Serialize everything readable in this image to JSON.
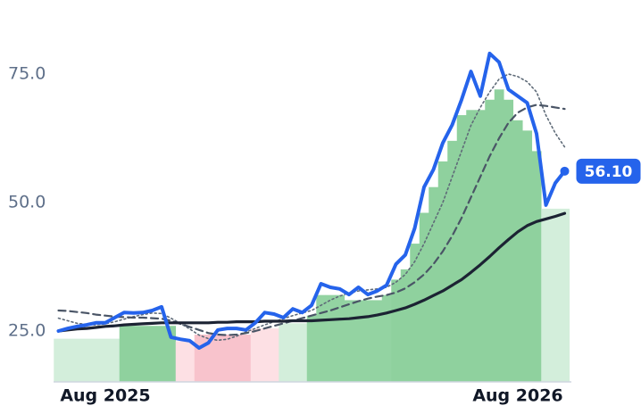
{
  "chart_data": {
    "type": "line",
    "categories": [
      null,
      null,
      null,
      null,
      null,
      "Aug 2025",
      null,
      null,
      null,
      null,
      null,
      null,
      null,
      null,
      null,
      null,
      null,
      null,
      null,
      null,
      null,
      null,
      null,
      null,
      null,
      null,
      null,
      null,
      null,
      null,
      null,
      null,
      null,
      null,
      null,
      null,
      null,
      null,
      null,
      null,
      null,
      null,
      null,
      null,
      null,
      null,
      null,
      null,
      null,
      "Aug 2026",
      null,
      null,
      null,
      null,
      null
    ],
    "series": [
      {
        "color": "#5f6b78",
        "dash": "2 3",
        "width": 1.6,
        "values": [
          27.5,
          27,
          26.5,
          26.3,
          26.2,
          26.4,
          26.8,
          27.3,
          27.8,
          28.2,
          28.5,
          28.4,
          27.5,
          26.5,
          25.4,
          24.2,
          23.5,
          23.2,
          23.4,
          24.0,
          24.8,
          25.5,
          26.2,
          26.8,
          27.4,
          28.0,
          28.5,
          29.0,
          30.0,
          31.0,
          31.8,
          32.4,
          32.8,
          33.0,
          33.2,
          33.5,
          34.5,
          36.0,
          38.5,
          42,
          46,
          50,
          55,
          60,
          65,
          68.5,
          71.5,
          74,
          75,
          74.5,
          73.5,
          71.5,
          67,
          63.5,
          60.8
        ]
      },
      {
        "color": "#4a5566",
        "dash": "8 5",
        "width": 2.2,
        "values": [
          29,
          28.9,
          28.7,
          28.5,
          28.2,
          28,
          27.8,
          27.7,
          27.6,
          27.6,
          27.5,
          27.4,
          27.0,
          26.4,
          25.8,
          25.2,
          24.6,
          24.3,
          24.2,
          24.3,
          24.6,
          25.0,
          25.5,
          26.0,
          26.5,
          27.0,
          27.5,
          28.0,
          28.5,
          29.0,
          29.6,
          30.2,
          30.8,
          31.3,
          31.7,
          32.0,
          32.5,
          33.3,
          34.5,
          36.0,
          38.0,
          40.5,
          43.5,
          47,
          51,
          55,
          59,
          62.5,
          65.5,
          67.5,
          68.5,
          69,
          68.8,
          68.5,
          68.2
        ]
      },
      {
        "color": "#1c2333",
        "dash": "",
        "width": 3.2,
        "values": [
          25.0,
          25.2,
          25.4,
          25.5,
          25.7,
          25.9,
          26.0,
          26.2,
          26.3,
          26.4,
          26.5,
          26.6,
          26.6,
          26.6,
          26.6,
          26.6,
          26.6,
          26.7,
          26.7,
          26.8,
          26.8,
          26.8,
          26.9,
          26.9,
          26.9,
          27.0,
          27.0,
          27.0,
          27.1,
          27.2,
          27.3,
          27.4,
          27.6,
          27.8,
          28.1,
          28.5,
          29.0,
          29.5,
          30.2,
          31.0,
          31.9,
          32.8,
          33.9,
          35.0,
          36.4,
          37.9,
          39.5,
          41.2,
          42.8,
          44.3,
          45.5,
          46.3,
          46.8,
          47.3,
          47.9
        ]
      },
      {
        "color": "#2563eb",
        "dash": "",
        "width": 4,
        "values": [
          25.0,
          25.5,
          25.9,
          26.2,
          26.6,
          26.6,
          27.6,
          28.6,
          28.5,
          28.6,
          29.0,
          29.7,
          23.8,
          23.4,
          23.1,
          21.7,
          22.7,
          25.2,
          25.5,
          25.5,
          25.2,
          26.6,
          28.6,
          28.3,
          27.6,
          29.3,
          28.6,
          30.0,
          34.2,
          33.5,
          33.2,
          32.1,
          33.5,
          32.1,
          32.8,
          33.9,
          38.0,
          39.8,
          45.0,
          53.0,
          56.4,
          61.6,
          65.1,
          70.0,
          75.5,
          70.7,
          79.0,
          77.3,
          72.0,
          70.7,
          69.4,
          63.4,
          49.5,
          53.8,
          56.1
        ],
        "value_labels": [
          null,
          null,
          null,
          null,
          null,
          null,
          null,
          null,
          null,
          null,
          null,
          null,
          null,
          null,
          null,
          null,
          null,
          null,
          null,
          null,
          null,
          null,
          null,
          null,
          null,
          null,
          null,
          null,
          null,
          null,
          null,
          null,
          null,
          null,
          null,
          null,
          null,
          null,
          null,
          null,
          null,
          null,
          null,
          null,
          null,
          null,
          null,
          null,
          null,
          null,
          null,
          null,
          null,
          null,
          "56.10"
        ]
      }
    ],
    "bands": {
      "values": [
        23.5,
        23.5,
        23.5,
        23.5,
        23.5,
        23.5,
        23.5,
        26,
        26,
        26,
        26,
        26,
        26,
        23,
        23,
        24.3,
        24.3,
        24.3,
        24.3,
        24.3,
        24.3,
        25.5,
        25.5,
        25.5,
        26.5,
        26.5,
        26.5,
        28,
        32,
        32,
        32,
        31,
        31,
        31,
        31,
        32,
        35,
        37,
        42,
        48,
        53,
        58,
        62,
        67,
        68,
        68,
        70,
        72,
        70,
        66,
        64,
        60,
        48.8,
        48.8,
        48.8
      ],
      "colors": [
        "#d3eedb",
        "#d3eedb",
        "#d3eedb",
        "#d3eedb",
        "#d3eedb",
        "#d3eedb",
        "#d3eedb",
        "#8fd19e",
        "#8fd19e",
        "#8fd19e",
        "#8fd19e",
        "#8fd19e",
        "#8fd19e",
        "#fde0e4",
        "#fde0e4",
        "#f8c3cc",
        "#f8c3cc",
        "#f8c3cc",
        "#f8c3cc",
        "#f8c3cc",
        "#f8c3cc",
        "#fde0e4",
        "#fde0e4",
        "#fde0e4",
        "#d3eedb",
        "#d3eedb",
        "#d3eedb",
        "#93d3a2",
        "#93d3a2",
        "#93d3a2",
        "#93d3a2",
        "#93d3a2",
        "#93d3a2",
        "#93d3a2",
        "#93d3a2",
        "#93d3a2",
        "#8fd19e",
        "#8fd19e",
        "#8fd19e",
        "#8fd19e",
        "#8fd19e",
        "#8fd19e",
        "#8fd19e",
        "#8fd19e",
        "#8fd19e",
        "#8fd19e",
        "#8fd19e",
        "#8fd19e",
        "#8fd19e",
        "#8fd19e",
        "#8fd19e",
        "#8fd19e",
        "#d3eedb",
        "#d3eedb",
        "#d3eedb"
      ]
    },
    "ylim": [
      15,
      86
    ],
    "yticks": [
      {
        "value": 25,
        "label": "25.0"
      },
      {
        "value": 50,
        "label": "50.0"
      },
      {
        "value": 75,
        "label": "75.0"
      }
    ]
  }
}
